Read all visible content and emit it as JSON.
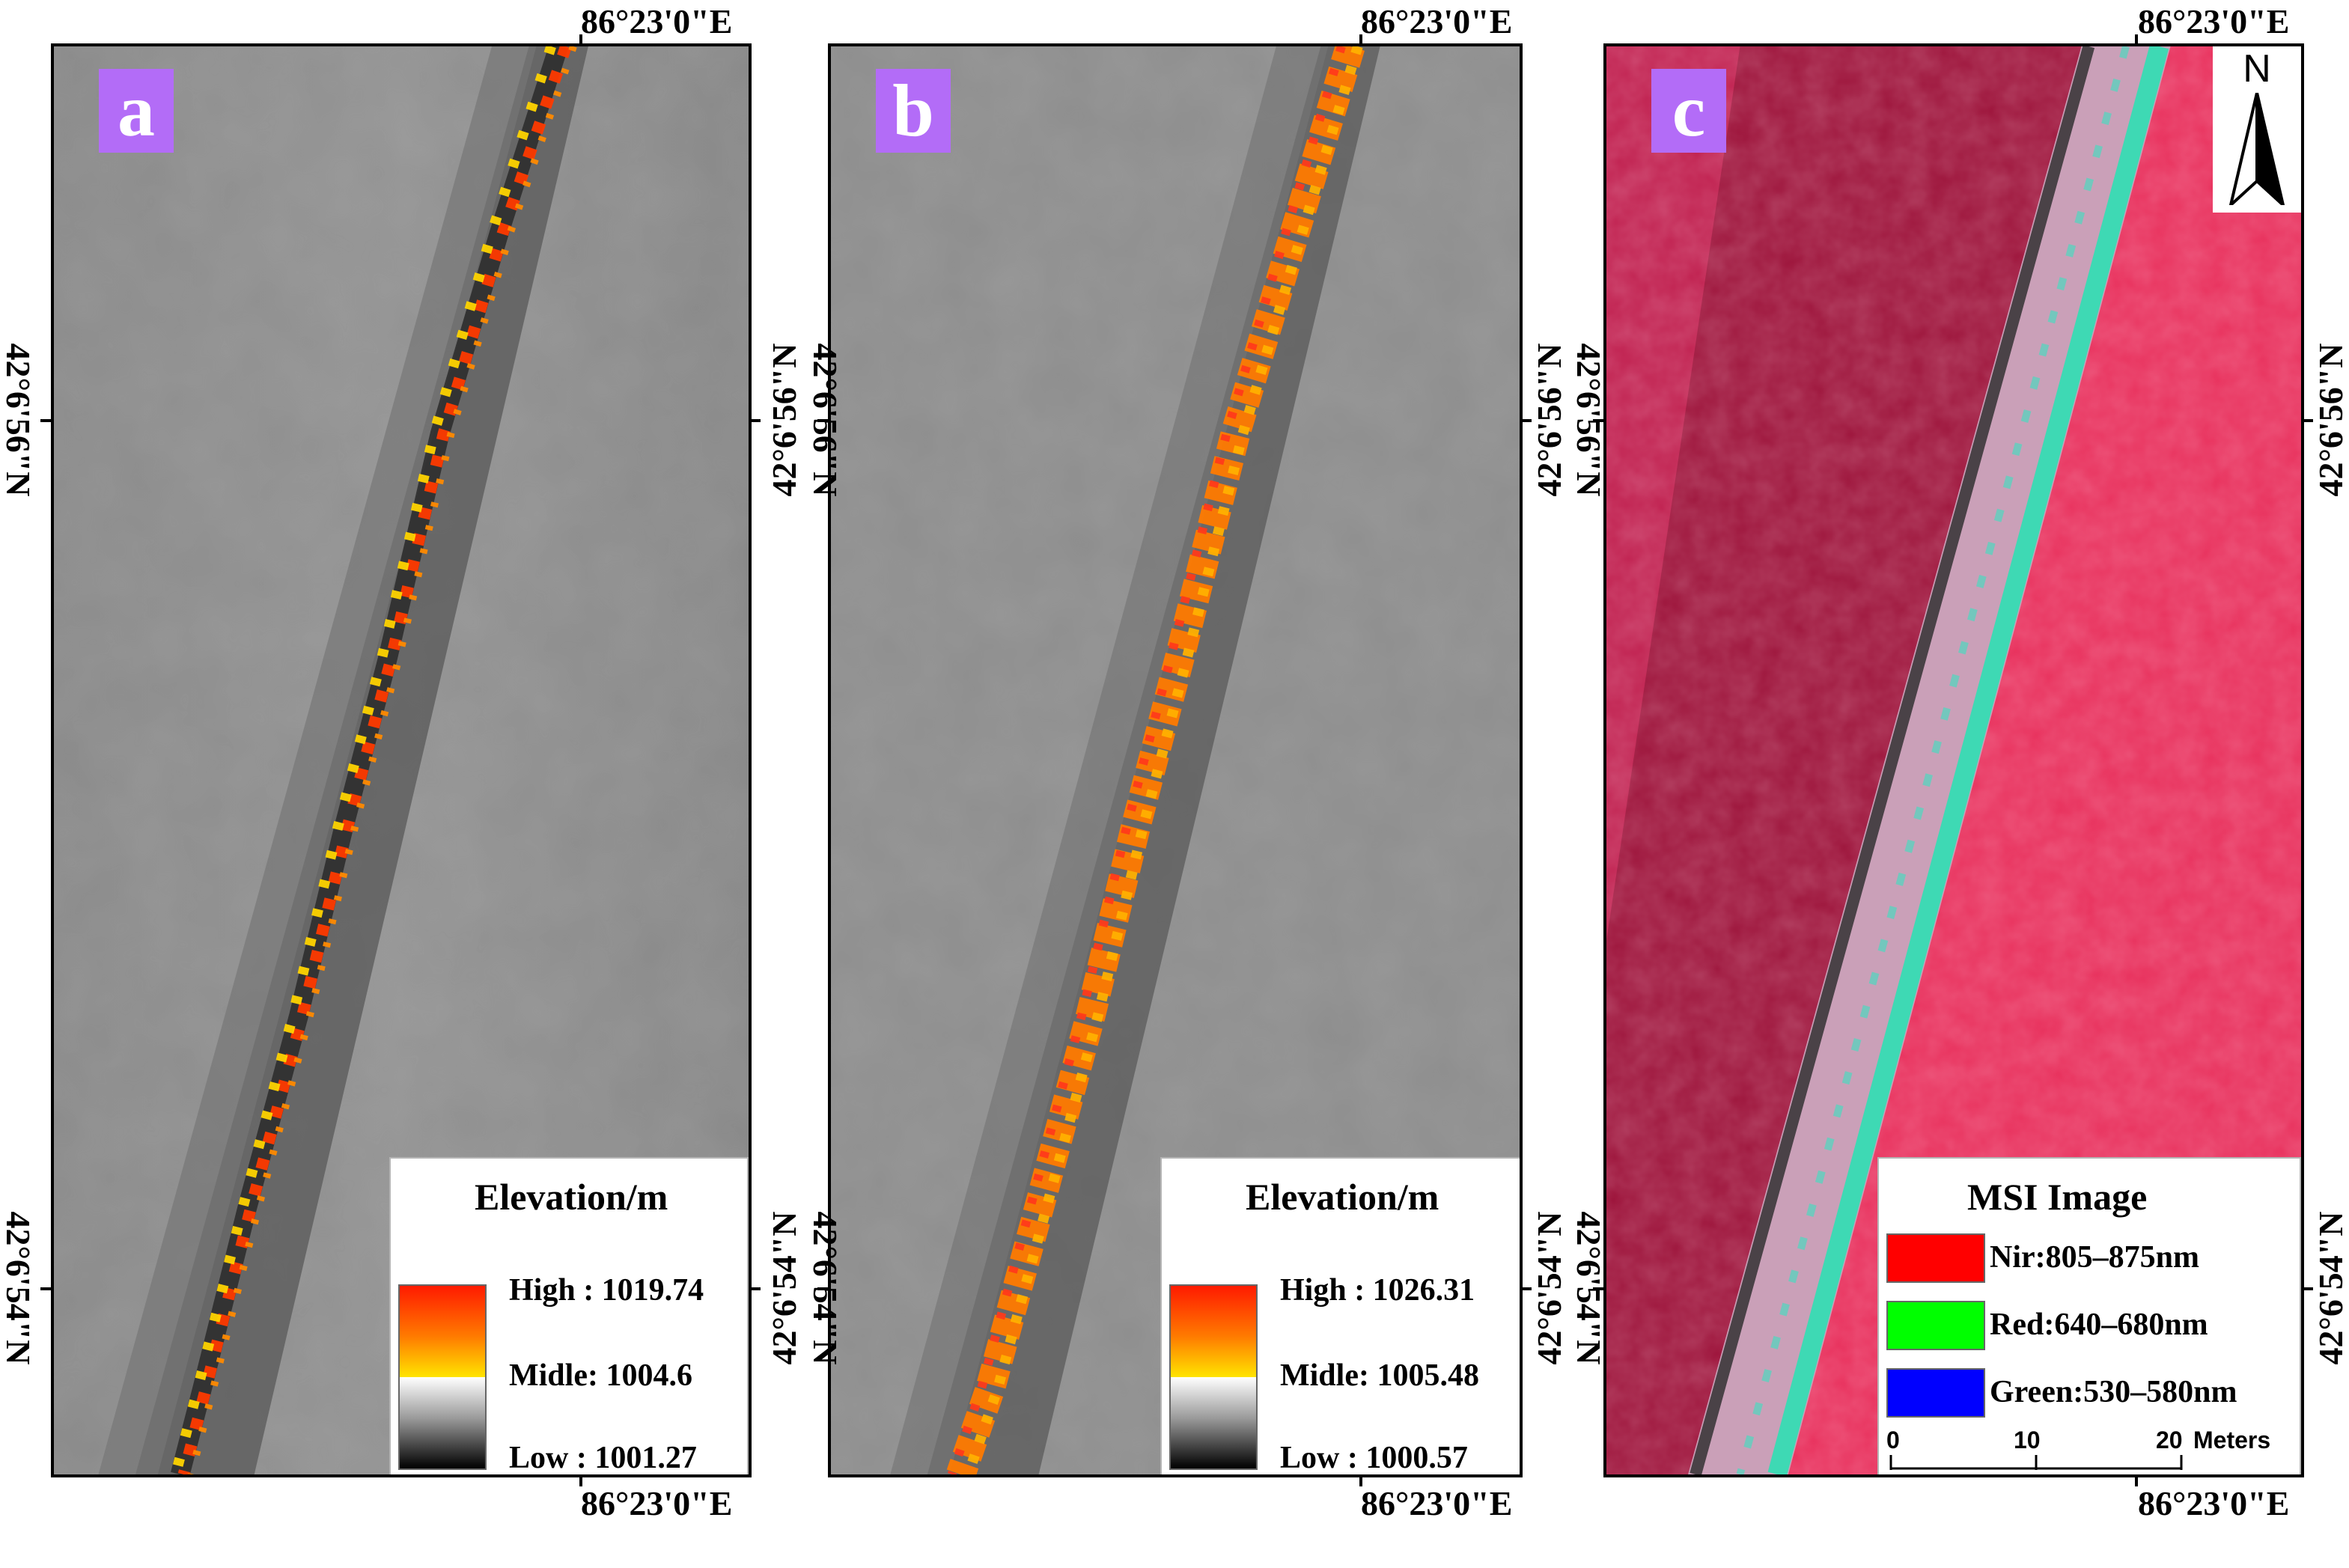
{
  "coords": {
    "lon_top": "86°23'0\"E",
    "lon_bottom": "86°23'0\"E",
    "lat_upper": "42°6'56\"N",
    "lat_lower": "42°6'54\"N"
  },
  "panels": [
    {
      "letter": "a",
      "legend": {
        "title": "Elevation/m",
        "high": "High : 1019.74",
        "mid": "Midle: 1004.6",
        "low": "Low : 1001.27"
      }
    },
    {
      "letter": "b",
      "legend": {
        "title": "Elevation/m",
        "high": "High : 1026.31",
        "mid": "Midle: 1005.48",
        "low": "Low : 1000.57"
      }
    },
    {
      "letter": "c",
      "legend": {
        "title": "MSI Image",
        "bands": [
          {
            "label": "Nir:805–875nm",
            "color": "#ff0000"
          },
          {
            "label": "Red:640–680nm",
            "color": "#00ff00"
          },
          {
            "label": "Green:530–580nm",
            "color": "#0000ff"
          }
        ]
      },
      "north_label": "N",
      "scale": {
        "ticks": [
          "0",
          "10",
          "20"
        ],
        "unit": "Meters"
      }
    }
  ],
  "colors": {
    "letter_badge": "#b36cf7",
    "ramp_high": "#ff1a00",
    "ramp_mid": "#ffe400",
    "ramp_low": "#000000"
  }
}
